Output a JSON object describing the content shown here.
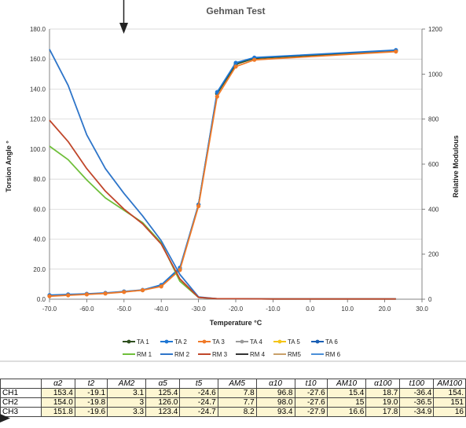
{
  "chart_data": {
    "type": "line",
    "title": "Gehman Test",
    "xlabel": "Temperature °C",
    "ylabel": "Torsion Angle °",
    "y2label": "Relative Modulous",
    "xlim": [
      -70,
      30
    ],
    "ylim": [
      0,
      180
    ],
    "y2lim": [
      0,
      1200
    ],
    "xticks": [
      "-70.0",
      "-60.0",
      "-50.0",
      "-40.0",
      "-30.0",
      "-20.0",
      "-10.0",
      "0.0",
      "10.0",
      "20.0",
      "30.0"
    ],
    "yticks": [
      "0.0",
      "20.0",
      "40.0",
      "60.0",
      "80.0",
      "100.0",
      "120.0",
      "140.0",
      "160.0",
      "180.0"
    ],
    "y2ticks": [
      "0",
      "200",
      "400",
      "600",
      "800",
      "1000",
      "1200"
    ],
    "grid": true,
    "legend_position": "bottom",
    "series": [
      {
        "name": "TA 1",
        "axis": "left",
        "color": "#2f4f1f",
        "marker": true,
        "x": [
          -70,
          -65,
          -60,
          -55,
          -50,
          -45,
          -40,
          -35,
          -30,
          -25,
          -20,
          -15,
          23
        ],
        "y": [
          2.5,
          3.0,
          3.4,
          4.0,
          5.0,
          6.0,
          9.0,
          20.0,
          63.0,
          137.0,
          156.5,
          160.5,
          165.5
        ]
      },
      {
        "name": "TA 2",
        "axis": "left",
        "color": "#1f77d4",
        "marker": true,
        "x": [
          -70,
          -65,
          -60,
          -55,
          -50,
          -45,
          -40,
          -35,
          -30,
          -25,
          -20,
          -15,
          23
        ],
        "y": [
          2.7,
          3.2,
          3.6,
          4.2,
          5.2,
          6.2,
          9.5,
          21.0,
          63.0,
          138.0,
          157.5,
          161.0,
          166.0
        ]
      },
      {
        "name": "TA 3",
        "axis": "left",
        "color": "#f07a28",
        "marker": true,
        "x": [
          -70,
          -65,
          -60,
          -55,
          -50,
          -45,
          -40,
          -35,
          -30,
          -25,
          -20,
          -15,
          23
        ],
        "y": [
          2.0,
          2.6,
          3.2,
          3.8,
          4.8,
          6.0,
          8.5,
          19.5,
          62.0,
          135.0,
          155.0,
          159.5,
          165.0
        ]
      },
      {
        "name": "TA 4",
        "axis": "left",
        "color": "#9a9a9a",
        "marker": true,
        "x": [],
        "y": []
      },
      {
        "name": "TA 5",
        "axis": "left",
        "color": "#f5c518",
        "marker": true,
        "x": [],
        "y": []
      },
      {
        "name": "TA 6",
        "axis": "left",
        "color": "#1a5fb4",
        "marker": true,
        "x": [],
        "y": []
      },
      {
        "name": "RM 1",
        "axis": "right",
        "color": "#6fbf3a",
        "marker": false,
        "x": [
          -70,
          -65,
          -60,
          -55,
          -50,
          -45,
          -40,
          -35,
          -30,
          -25,
          -20,
          -10,
          0,
          10,
          23
        ],
        "y": [
          680,
          620,
          530,
          450,
          395,
          340,
          250,
          80,
          8,
          2,
          2,
          1,
          1,
          1,
          1
        ]
      },
      {
        "name": "RM 2",
        "axis": "right",
        "color": "#2e75c9",
        "marker": false,
        "x": [
          -70,
          -65,
          -60,
          -55,
          -50,
          -45,
          -40,
          -35,
          -30,
          -25,
          -20,
          -10,
          0,
          10,
          23
        ],
        "y": [
          1110,
          950,
          730,
          580,
          470,
          370,
          260,
          110,
          10,
          2,
          2,
          1,
          1,
          1,
          1
        ]
      },
      {
        "name": "RM 3",
        "axis": "right",
        "color": "#c0462a",
        "marker": false,
        "x": [
          -70,
          -65,
          -60,
          -55,
          -50,
          -45,
          -40,
          -35,
          -30,
          -25,
          -20,
          -10,
          0,
          10,
          23
        ],
        "y": [
          795,
          700,
          580,
          480,
          400,
          335,
          245,
          90,
          8,
          2,
          2,
          1,
          1,
          1,
          1
        ]
      },
      {
        "name": "RM 4",
        "axis": "right",
        "color": "#333333",
        "marker": false,
        "x": [],
        "y": []
      },
      {
        "name": "RM5",
        "axis": "right",
        "color": "#c9a06a",
        "marker": false,
        "x": [],
        "y": []
      },
      {
        "name": "RM 6",
        "axis": "right",
        "color": "#4a8fd8",
        "marker": false,
        "x": [],
        "y": []
      }
    ]
  },
  "table": {
    "headers": [
      "",
      "α2",
      "t2",
      "AM2",
      "α5",
      "t5",
      "AM5",
      "α10",
      "t10",
      "AM10",
      "α100",
      "t100",
      "AM100"
    ],
    "rows": [
      [
        "CH1",
        "153.4",
        "-19.1",
        "3.1",
        "125.4",
        "-24.6",
        "7.8",
        "96.8",
        "-27.6",
        "15.4",
        "18.7",
        "-36.4",
        "154."
      ],
      [
        "CH2",
        "154.0",
        "-19.8",
        "3",
        "126.0",
        "-24.7",
        "7.7",
        "98.0",
        "-27.6",
        "15",
        "19.0",
        "-36.5",
        "151"
      ],
      [
        "CH3",
        "151.8",
        "-19.6",
        "3.3",
        "123.4",
        "-24.7",
        "8.2",
        "93.4",
        "-27.9",
        "16.6",
        "17.8",
        "-34.9",
        "16"
      ]
    ]
  }
}
